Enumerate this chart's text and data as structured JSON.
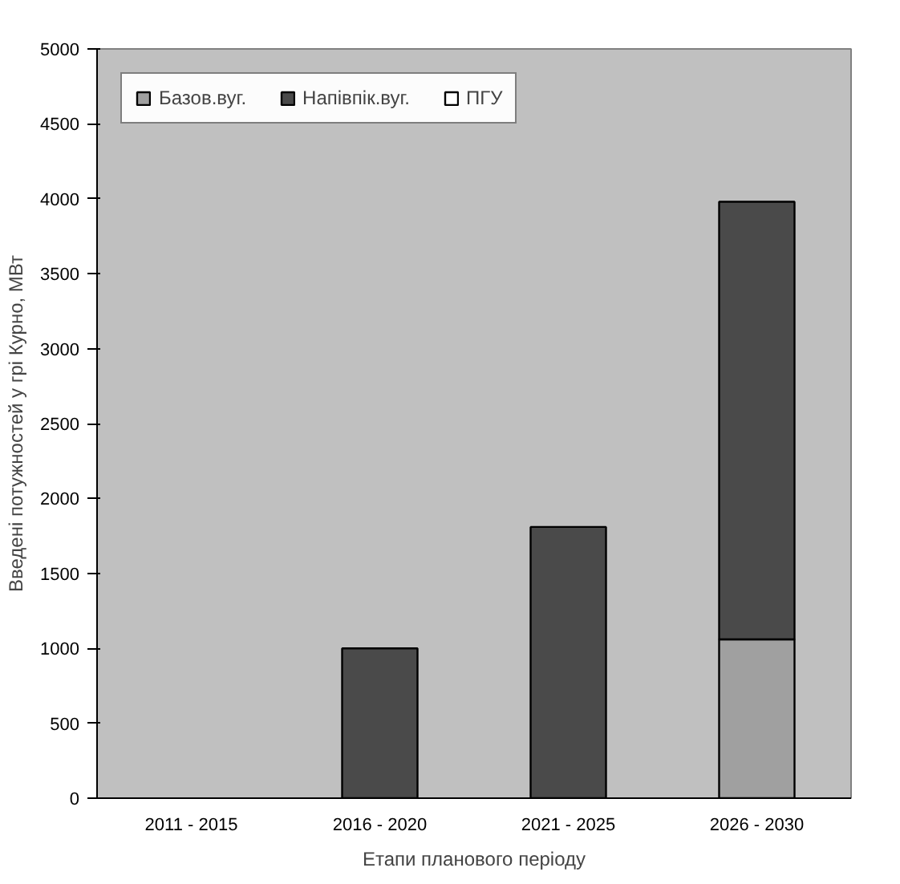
{
  "chart_data": {
    "type": "bar",
    "stacked": true,
    "xlabel": "Етапи планового періоду",
    "ylabel": "Введені потужностей у грі Курно, МВт",
    "categories": [
      "2011 - 2015",
      "2016 - 2020",
      "2021 - 2025",
      "2026 - 2030"
    ],
    "series": [
      {
        "name": "Базов.вуг.",
        "color": "#a0a0a0",
        "values": [
          0,
          0,
          0,
          1060
        ]
      },
      {
        "name": "Напівпік.вуг.",
        "color": "#4a4a4a",
        "values": [
          0,
          1000,
          1810,
          2920
        ]
      },
      {
        "name": "ПГУ",
        "color": "#ffffff",
        "values": [
          0,
          0,
          0,
          0
        ]
      }
    ],
    "ylim": [
      0,
      5000
    ],
    "yticks": [
      0,
      500,
      1000,
      1500,
      2000,
      2500,
      3000,
      3500,
      4000,
      4500,
      5000
    ],
    "grid": false,
    "legend": "top left"
  }
}
